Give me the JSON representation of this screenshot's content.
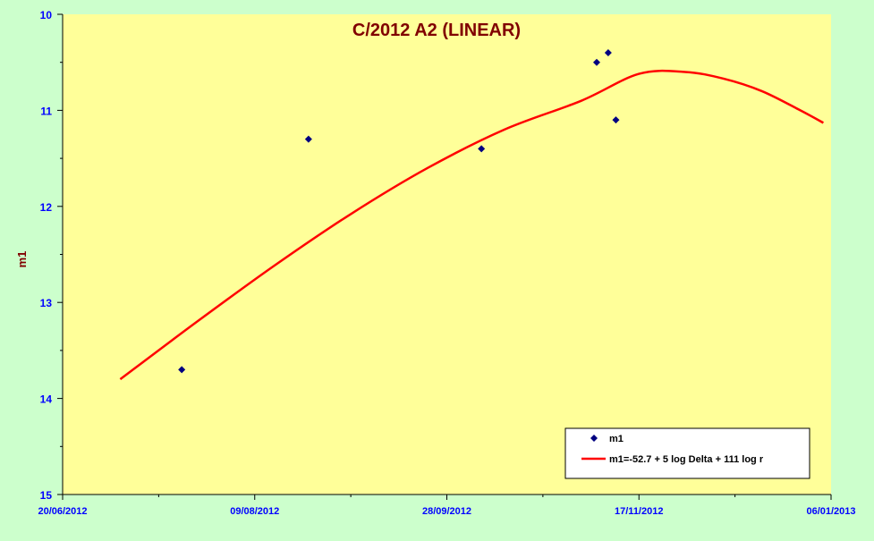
{
  "chart_data": {
    "type": "scatter",
    "title": "C/2012 A2 (LINEAR)",
    "xlabel": "",
    "ylabel": "m1",
    "x_tick_labels": [
      "20/06/2012",
      "09/08/2012",
      "28/09/2012",
      "17/11/2012",
      "06/01/2013"
    ],
    "x_ticks": [
      "2012-06-20",
      "2012-08-09",
      "2012-09-28",
      "2012-11-17",
      "2013-01-06"
    ],
    "xlim": [
      "2012-06-20",
      "2013-01-06"
    ],
    "ylim": [
      10,
      15
    ],
    "y_reversed": true,
    "y_ticks": [
      10,
      11,
      12,
      13,
      14,
      15
    ],
    "grid": false,
    "legend_position": "bottom-right",
    "series": [
      {
        "name": "m1",
        "kind": "scatter",
        "marker": "diamond",
        "color": "#000080",
        "points": [
          {
            "x": "2012-07-21",
            "y": 13.7
          },
          {
            "x": "2012-08-23",
            "y": 11.3
          },
          {
            "x": "2012-10-07",
            "y": 11.4
          },
          {
            "x": "2012-11-06",
            "y": 10.5
          },
          {
            "x": "2012-11-09",
            "y": 10.4
          },
          {
            "x": "2012-11-11",
            "y": 11.1
          }
        ]
      },
      {
        "name": "m1=-52.7 + 5  log Delta + 111 log r",
        "kind": "line",
        "color": "#ff0000",
        "points": [
          {
            "x": "2012-07-05",
            "y": 13.8
          },
          {
            "x": "2012-07-25",
            "y": 13.2
          },
          {
            "x": "2012-08-14",
            "y": 12.62
          },
          {
            "x": "2012-09-03",
            "y": 12.08
          },
          {
            "x": "2012-09-23",
            "y": 11.6
          },
          {
            "x": "2012-10-13",
            "y": 11.2
          },
          {
            "x": "2012-11-02",
            "y": 10.9
          },
          {
            "x": "2012-11-17",
            "y": 10.62
          },
          {
            "x": "2012-11-29",
            "y": 10.6
          },
          {
            "x": "2012-12-09",
            "y": 10.67
          },
          {
            "x": "2012-12-19",
            "y": 10.8
          },
          {
            "x": "2012-12-29",
            "y": 11.0
          },
          {
            "x": "2013-01-04",
            "y": 11.13
          }
        ]
      }
    ]
  },
  "colors": {
    "page_background": "#ccffcc",
    "plot_background": "#ffff99",
    "title": "#800000",
    "ylabel": "#800000",
    "tick_labels": "#0000ff",
    "fit_line": "#ff0000",
    "markers": "#000080"
  }
}
